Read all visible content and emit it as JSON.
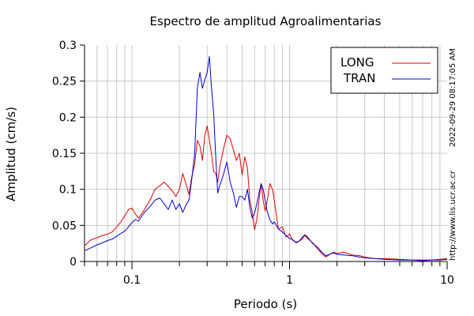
{
  "chart_data": {
    "type": "line",
    "title": "Espectro de amplitud Agroalimentarias",
    "xlabel": "Periodo (s)",
    "ylabel": "Amplitud (cm/s)",
    "xscale": "log",
    "xlim": [
      0.05,
      10
    ],
    "ylim": [
      0,
      0.3
    ],
    "xticks": [
      {
        "value": 0.1,
        "label": "0.1"
      },
      {
        "value": 1,
        "label": "1"
      },
      {
        "value": 10,
        "label": "10"
      }
    ],
    "yticks": [
      {
        "value": 0,
        "label": "0"
      },
      {
        "value": 0.05,
        "label": "0.05"
      },
      {
        "value": 0.1,
        "label": "0.1"
      },
      {
        "value": 0.15,
        "label": "0.15"
      },
      {
        "value": 0.2,
        "label": "0.2"
      },
      {
        "value": 0.25,
        "label": "0.25"
      },
      {
        "value": 0.3,
        "label": "0.3"
      }
    ],
    "grid": true,
    "legend_position": "top-right",
    "series": [
      {
        "name": "LONG",
        "color": "#dd0000",
        "points": [
          [
            0.05,
            0.022
          ],
          [
            0.055,
            0.03
          ],
          [
            0.06,
            0.033
          ],
          [
            0.065,
            0.036
          ],
          [
            0.07,
            0.038
          ],
          [
            0.075,
            0.041
          ],
          [
            0.08,
            0.048
          ],
          [
            0.085,
            0.055
          ],
          [
            0.09,
            0.063
          ],
          [
            0.095,
            0.072
          ],
          [
            0.1,
            0.074
          ],
          [
            0.105,
            0.066
          ],
          [
            0.11,
            0.06
          ],
          [
            0.12,
            0.072
          ],
          [
            0.13,
            0.085
          ],
          [
            0.14,
            0.1
          ],
          [
            0.15,
            0.105
          ],
          [
            0.16,
            0.11
          ],
          [
            0.17,
            0.104
          ],
          [
            0.18,
            0.098
          ],
          [
            0.19,
            0.09
          ],
          [
            0.2,
            0.1
          ],
          [
            0.21,
            0.122
          ],
          [
            0.22,
            0.108
          ],
          [
            0.23,
            0.093
          ],
          [
            0.24,
            0.118
          ],
          [
            0.25,
            0.135
          ],
          [
            0.26,
            0.168
          ],
          [
            0.27,
            0.16
          ],
          [
            0.28,
            0.14
          ],
          [
            0.29,
            0.175
          ],
          [
            0.3,
            0.188
          ],
          [
            0.31,
            0.168
          ],
          [
            0.32,
            0.148
          ],
          [
            0.33,
            0.125
          ],
          [
            0.34,
            0.122
          ],
          [
            0.35,
            0.11
          ],
          [
            0.36,
            0.13
          ],
          [
            0.38,
            0.155
          ],
          [
            0.4,
            0.175
          ],
          [
            0.42,
            0.17
          ],
          [
            0.44,
            0.155
          ],
          [
            0.46,
            0.14
          ],
          [
            0.48,
            0.15
          ],
          [
            0.5,
            0.12
          ],
          [
            0.52,
            0.145
          ],
          [
            0.54,
            0.13
          ],
          [
            0.56,
            0.085
          ],
          [
            0.58,
            0.068
          ],
          [
            0.6,
            0.044
          ],
          [
            0.62,
            0.058
          ],
          [
            0.64,
            0.085
          ],
          [
            0.66,
            0.108
          ],
          [
            0.68,
            0.085
          ],
          [
            0.7,
            0.07
          ],
          [
            0.72,
            0.083
          ],
          [
            0.75,
            0.108
          ],
          [
            0.78,
            0.1
          ],
          [
            0.8,
            0.085
          ],
          [
            0.85,
            0.045
          ],
          [
            0.9,
            0.048
          ],
          [
            0.95,
            0.034
          ],
          [
            1.0,
            0.038
          ],
          [
            1.05,
            0.029
          ],
          [
            1.1,
            0.027
          ],
          [
            1.15,
            0.028
          ],
          [
            1.2,
            0.031
          ],
          [
            1.25,
            0.036
          ],
          [
            1.3,
            0.032
          ],
          [
            1.4,
            0.026
          ],
          [
            1.5,
            0.018
          ],
          [
            1.6,
            0.011
          ],
          [
            1.7,
            0.006
          ],
          [
            1.8,
            0.01
          ],
          [
            1.9,
            0.013
          ],
          [
            2.0,
            0.011
          ],
          [
            2.2,
            0.013
          ],
          [
            2.5,
            0.009
          ],
          [
            2.8,
            0.008
          ],
          [
            3.0,
            0.006
          ],
          [
            3.5,
            0.004
          ],
          [
            4.0,
            0.004
          ],
          [
            5.0,
            0.003
          ],
          [
            6.0,
            0.002
          ],
          [
            7.0,
            0.002
          ],
          [
            8.0,
            0.002
          ],
          [
            9.0,
            0.003
          ],
          [
            10.0,
            0.004
          ]
        ]
      },
      {
        "name": "TRAN",
        "color": "#0000cc",
        "points": [
          [
            0.05,
            0.015
          ],
          [
            0.055,
            0.019
          ],
          [
            0.06,
            0.023
          ],
          [
            0.065,
            0.026
          ],
          [
            0.07,
            0.029
          ],
          [
            0.075,
            0.031
          ],
          [
            0.08,
            0.035
          ],
          [
            0.085,
            0.039
          ],
          [
            0.09,
            0.042
          ],
          [
            0.095,
            0.048
          ],
          [
            0.1,
            0.054
          ],
          [
            0.105,
            0.058
          ],
          [
            0.11,
            0.056
          ],
          [
            0.12,
            0.068
          ],
          [
            0.13,
            0.076
          ],
          [
            0.14,
            0.085
          ],
          [
            0.15,
            0.088
          ],
          [
            0.16,
            0.08
          ],
          [
            0.17,
            0.072
          ],
          [
            0.18,
            0.085
          ],
          [
            0.19,
            0.072
          ],
          [
            0.2,
            0.08
          ],
          [
            0.21,
            0.068
          ],
          [
            0.22,
            0.078
          ],
          [
            0.23,
            0.085
          ],
          [
            0.24,
            0.115
          ],
          [
            0.25,
            0.15
          ],
          [
            0.26,
            0.24
          ],
          [
            0.27,
            0.262
          ],
          [
            0.28,
            0.24
          ],
          [
            0.29,
            0.252
          ],
          [
            0.3,
            0.262
          ],
          [
            0.31,
            0.284
          ],
          [
            0.32,
            0.24
          ],
          [
            0.33,
            0.205
          ],
          [
            0.34,
            0.145
          ],
          [
            0.35,
            0.095
          ],
          [
            0.36,
            0.105
          ],
          [
            0.38,
            0.12
          ],
          [
            0.4,
            0.138
          ],
          [
            0.42,
            0.11
          ],
          [
            0.44,
            0.095
          ],
          [
            0.46,
            0.075
          ],
          [
            0.48,
            0.09
          ],
          [
            0.5,
            0.09
          ],
          [
            0.52,
            0.085
          ],
          [
            0.54,
            0.1
          ],
          [
            0.56,
            0.075
          ],
          [
            0.58,
            0.06
          ],
          [
            0.6,
            0.067
          ],
          [
            0.62,
            0.08
          ],
          [
            0.64,
            0.095
          ],
          [
            0.66,
            0.108
          ],
          [
            0.68,
            0.1
          ],
          [
            0.7,
            0.085
          ],
          [
            0.72,
            0.07
          ],
          [
            0.75,
            0.058
          ],
          [
            0.78,
            0.052
          ],
          [
            0.8,
            0.055
          ],
          [
            0.85,
            0.045
          ],
          [
            0.9,
            0.041
          ],
          [
            0.95,
            0.036
          ],
          [
            1.0,
            0.032
          ],
          [
            1.05,
            0.03
          ],
          [
            1.1,
            0.026
          ],
          [
            1.15,
            0.028
          ],
          [
            1.2,
            0.033
          ],
          [
            1.25,
            0.037
          ],
          [
            1.3,
            0.034
          ],
          [
            1.4,
            0.025
          ],
          [
            1.5,
            0.02
          ],
          [
            1.6,
            0.013
          ],
          [
            1.7,
            0.008
          ],
          [
            1.8,
            0.01
          ],
          [
            1.9,
            0.012
          ],
          [
            2.0,
            0.01
          ],
          [
            2.2,
            0.009
          ],
          [
            2.5,
            0.008
          ],
          [
            2.8,
            0.006
          ],
          [
            3.0,
            0.005
          ],
          [
            3.5,
            0.004
          ],
          [
            4.0,
            0.003
          ],
          [
            5.0,
            0.002
          ],
          [
            6.0,
            0.002
          ],
          [
            7.0,
            0.001
          ],
          [
            8.0,
            0.002
          ],
          [
            9.0,
            0.002
          ],
          [
            10.0,
            0.003
          ]
        ]
      }
    ]
  },
  "side_labels": {
    "timestamp": "2022-09-29 08:17:05 AM",
    "url": "http://www.lis.ucr.ac.cr"
  }
}
